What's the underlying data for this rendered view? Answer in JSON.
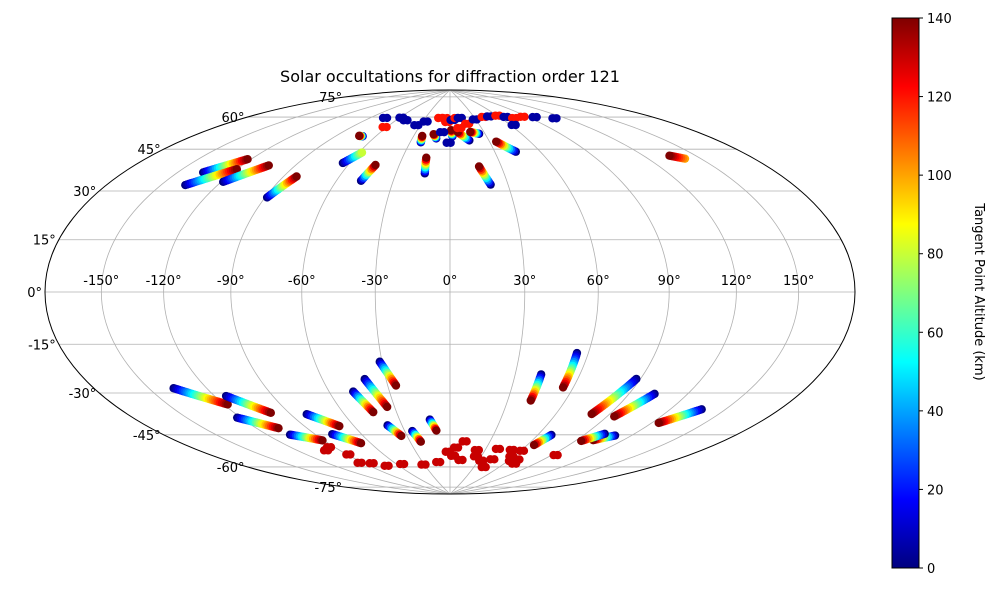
{
  "chart_data": {
    "type": "scatter",
    "projection": "hammer",
    "title": "Solar occultations for diffraction order 121",
    "xlabel": "",
    "ylabel": "",
    "longitude_ticks": [
      -150,
      -120,
      -90,
      -60,
      -30,
      0,
      30,
      60,
      90,
      120,
      150
    ],
    "longitude_tick_labels": [
      "-150°",
      "-120°",
      "-90°",
      "-60°",
      "-30°",
      "0°",
      "30°",
      "60°",
      "90°",
      "120°",
      "150°"
    ],
    "latitude_ticks": [
      -75,
      -60,
      -45,
      -30,
      -15,
      0,
      15,
      30,
      45,
      60,
      75
    ],
    "latitude_tick_labels": [
      "-75°",
      "-60°",
      "-45°",
      "-30°",
      "-15°",
      "0°",
      "15°",
      "30°",
      "45°",
      "60°",
      "75°"
    ],
    "grid": true,
    "colormap": "jet",
    "colormap_stops": [
      "#00007f",
      "#0000ff",
      "#007fff",
      "#00ffff",
      "#7fff7f",
      "#ffff00",
      "#ff7f00",
      "#ff0000",
      "#7f0000"
    ],
    "colorbar": {
      "label": "Tangent Point Altitude (km)",
      "ticks": [
        0,
        20,
        40,
        60,
        80,
        100,
        120,
        140
      ],
      "tick_labels": [
        "0",
        "20",
        "40",
        "60",
        "80",
        "100",
        "120",
        "140"
      ],
      "range": [
        0,
        140
      ],
      "placement": "right"
    },
    "tracks_note_units": "lon/lat in degrees, altitude in km",
    "tracks": [
      {
        "lon0": -136,
        "lat0": 42,
        "lon1": -122,
        "lat1": 49,
        "alt0": 0,
        "alt1": 140
      },
      {
        "lon0": -137,
        "lat0": 37,
        "lon1": -120,
        "lat1": 45,
        "alt0": 0,
        "alt1": 140
      },
      {
        "lon0": -119,
        "lat0": 40,
        "lon1": -105,
        "lat1": 48,
        "alt0": 0,
        "alt1": 140
      },
      {
        "lon0": -89,
        "lat0": 36,
        "lon1": -83,
        "lat1": 45,
        "alt0": 0,
        "alt1": 140
      },
      {
        "lon0": -64,
        "lat0": 52,
        "lon1": -58,
        "lat1": 57,
        "alt0": 0,
        "alt1": 80
      },
      {
        "lon0": -47,
        "lat0": 45,
        "lon1": -44,
        "lat1": 52,
        "alt0": 0,
        "alt1": 140
      },
      {
        "lon0": -14,
        "lat0": 49,
        "lon1": -15,
        "lat1": 56,
        "alt0": 0,
        "alt1": 140
      },
      {
        "lon0": 21,
        "lat0": 44,
        "lon1": 17,
        "lat1": 52,
        "alt0": 0,
        "alt1": 140
      },
      {
        "lon0": 44,
        "lat0": 58,
        "lon1": 35,
        "lat1": 63,
        "alt0": 0,
        "alt1": 140
      },
      {
        "lon0": 141,
        "lat0": 47,
        "lon1": 135,
        "lat1": 49,
        "alt0": 100,
        "alt1": 140
      },
      {
        "lon0": -70,
        "lat0": 64,
        "lon1": -73,
        "lat1": 64,
        "alt0": 0,
        "alt1": 140
      },
      {
        "lon0": -22,
        "lat0": 63,
        "lon1": -23,
        "lat1": 66,
        "alt0": 0,
        "alt1": 140
      },
      {
        "lon0": -11,
        "lat0": 65,
        "lon1": -14,
        "lat1": 67,
        "alt0": 0,
        "alt1": 140
      },
      {
        "lon0": 2,
        "lat0": 66,
        "lon1": 1,
        "lat1": 69,
        "alt0": 0,
        "alt1": 140
      },
      {
        "lon0": 15,
        "lat0": 64,
        "lon1": 7,
        "lat1": 68,
        "alt0": 0,
        "alt1": 140
      },
      {
        "lon0": 25,
        "lat0": 67,
        "lon1": 18,
        "lat1": 68,
        "alt0": 0,
        "alt1": 140
      },
      {
        "lon0": -137,
        "lat0": -33,
        "lon1": -118,
        "lat1": -41,
        "alt0": 0,
        "alt1": 140
      },
      {
        "lon0": -114,
        "lat0": -38,
        "lon1": -100,
        "lat1": -46,
        "alt0": 0,
        "alt1": 140
      },
      {
        "lon0": -122,
        "lat0": -46,
        "lon1": -107,
        "lat1": -52,
        "alt0": 0,
        "alt1": 140
      },
      {
        "lon0": -106,
        "lat0": -55,
        "lon1": -91,
        "lat1": -59,
        "alt0": 0,
        "alt1": 140
      },
      {
        "lon0": -81,
        "lat0": -48,
        "lon1": -69,
        "lat1": -54,
        "alt0": 0,
        "alt1": 140
      },
      {
        "lon0": -79,
        "lat0": -57,
        "lon1": -67,
        "lat1": -62,
        "alt0": 0,
        "alt1": 140
      },
      {
        "lon0": -48,
        "lat0": -40,
        "lon1": -43,
        "lat1": -49,
        "alt0": 0,
        "alt1": 140
      },
      {
        "lon0": -40,
        "lat0": -35,
        "lon1": -34,
        "lat1": -47,
        "alt0": 0,
        "alt1": 140
      },
      {
        "lon0": -31,
        "lat0": -28,
        "lon1": -26,
        "lat1": -38,
        "alt0": 0,
        "alt1": 140
      },
      {
        "lon0": -39,
        "lat0": -55,
        "lon1": -34,
        "lat1": -60,
        "alt0": 0,
        "alt1": 140
      },
      {
        "lon0": -25,
        "lat0": -58,
        "lon1": -22,
        "lat1": -63,
        "alt0": 0,
        "alt1": 140
      },
      {
        "lon0": -12,
        "lat0": -53,
        "lon1": -9,
        "lat1": -58,
        "alt0": 0,
        "alt1": 140
      },
      {
        "lon0": 42,
        "lat0": -33,
        "lon1": 42,
        "lat1": -44,
        "alt0": 0,
        "alt1": 140
      },
      {
        "lon0": 55,
        "lat0": -24,
        "lon1": 55,
        "lat1": -38,
        "alt0": 0,
        "alt1": 140
      },
      {
        "lon0": 88,
        "lat0": -33,
        "lon1": 80,
        "lat1": -48,
        "alt0": 0,
        "alt1": 140
      },
      {
        "lon0": 103,
        "lat0": -38,
        "lon1": 94,
        "lat1": -48,
        "alt0": 0,
        "alt1": 140
      },
      {
        "lon0": 137,
        "lat0": -41,
        "lon1": 124,
        "lat1": -48,
        "alt0": 0,
        "alt1": 140
      },
      {
        "lon0": 110,
        "lat0": -55,
        "lon1": 101,
        "lat1": -58,
        "alt0": 0,
        "alt1": 140
      },
      {
        "lon0": 102,
        "lat0": -55,
        "lon1": 94,
        "lat1": -59,
        "alt0": 0,
        "alt1": 140
      },
      {
        "lon0": 69,
        "lat0": -58,
        "lon1": 65,
        "lat1": -63,
        "alt0": 0,
        "alt1": 140
      }
    ],
    "points": [
      {
        "lon": -75,
        "lat": 73,
        "alt": 5
      },
      {
        "lon": -58,
        "lat": 74,
        "alt": 5
      },
      {
        "lon": -50,
        "lat": 73,
        "alt": 5
      },
      {
        "lon": -34,
        "lat": 71,
        "alt": 5
      },
      {
        "lon": -27,
        "lat": 73,
        "alt": 5
      },
      {
        "lon": -12,
        "lat": 75,
        "alt": 120
      },
      {
        "lon": -6,
        "lat": 75,
        "alt": 120
      },
      {
        "lon": -3,
        "lat": 73,
        "alt": 120
      },
      {
        "lon": 3,
        "lat": 74,
        "alt": 5
      },
      {
        "lon": 8,
        "lat": 75,
        "alt": 120
      },
      {
        "lon": 12,
        "lat": 75,
        "alt": 5
      },
      {
        "lon": 18,
        "lat": 72,
        "alt": 120
      },
      {
        "lon": 29,
        "lat": 74,
        "alt": 5
      },
      {
        "lon": 42,
        "lat": 75,
        "alt": 120
      },
      {
        "lon": 49,
        "lat": 75,
        "alt": 5
      },
      {
        "lon": 60,
        "lat": 75,
        "alt": 120
      },
      {
        "lon": 67,
        "lat": 74,
        "alt": 5
      },
      {
        "lon": 74,
        "lat": 73,
        "alt": 120
      },
      {
        "lon": 85,
        "lat": 73,
        "alt": 120
      },
      {
        "lon": 96,
        "lat": 72,
        "alt": 5
      },
      {
        "lon": 111,
        "lat": 70,
        "alt": 5
      },
      {
        "lon": 63,
        "lat": 70,
        "alt": 5
      },
      {
        "lon": -1,
        "lat": 63,
        "alt": 5
      },
      {
        "lon": -7,
        "lat": 68,
        "alt": 5
      },
      {
        "lon": 9,
        "lat": 70,
        "alt": 120
      },
      {
        "lon": -62,
        "lat": 69,
        "alt": 120
      },
      {
        "lon": -93,
        "lat": -70,
        "alt": 130
      },
      {
        "lon": -83,
        "lat": -71,
        "alt": 130
      },
      {
        "lon": -73,
        "lat": -73,
        "alt": 130
      },
      {
        "lon": -54,
        "lat": -73,
        "alt": 130
      },
      {
        "lon": -31,
        "lat": -74,
        "alt": 130
      },
      {
        "lon": -13,
        "lat": -73,
        "alt": 130
      },
      {
        "lon": -2,
        "lat": -68,
        "alt": 130
      },
      {
        "lon": 3,
        "lat": -70,
        "alt": 130
      },
      {
        "lon": 5,
        "lat": -66,
        "alt": 130
      },
      {
        "lon": 11,
        "lat": -72,
        "alt": 130
      },
      {
        "lon": 11,
        "lat": -63,
        "alt": 130
      },
      {
        "lon": 23,
        "lat": -67,
        "alt": 130
      },
      {
        "lon": 25,
        "lat": -70,
        "alt": 130
      },
      {
        "lon": 33,
        "lat": -72,
        "alt": 130
      },
      {
        "lon": 40,
        "lat": -66,
        "alt": 130
      },
      {
        "lon": 43,
        "lat": -71,
        "alt": 130
      },
      {
        "lon": 42,
        "lat": -75,
        "alt": 130
      },
      {
        "lon": 52,
        "lat": -66,
        "alt": 130
      },
      {
        "lon": 58,
        "lat": -69,
        "alt": 130
      },
      {
        "lon": 61,
        "lat": -66,
        "alt": 130
      },
      {
        "lon": 63,
        "lat": -71,
        "alt": 130
      },
      {
        "lon": 67,
        "lat": -70,
        "alt": 130
      },
      {
        "lon": 70,
        "lat": -72,
        "alt": 130
      },
      {
        "lon": 93,
        "lat": -66,
        "alt": 130
      },
      {
        "lon": -94,
        "lat": -62,
        "alt": 130
      },
      {
        "lon": -89,
        "lat": -66,
        "alt": 130
      },
      {
        "lon": -100,
        "lat": -63,
        "alt": 130
      }
    ]
  }
}
